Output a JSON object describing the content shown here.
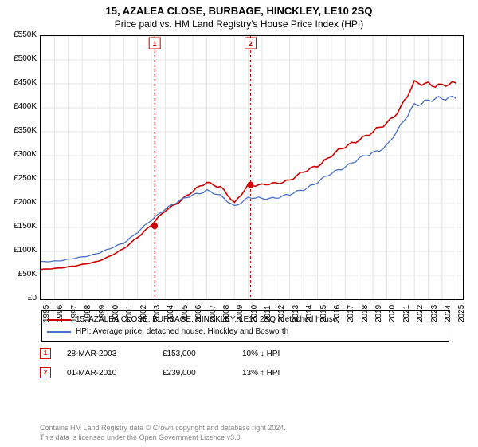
{
  "title": "15, AZALEA CLOSE, BURBAGE, HINCKLEY, LE10 2SQ",
  "subtitle": "Price paid vs. HM Land Registry's House Price Index (HPI)",
  "chart": {
    "type": "line",
    "background_color": "#ffffff",
    "grid_color": "#e5e5e5",
    "axis_color": "#000000",
    "title_fontsize": 13,
    "label_fontsize": 10,
    "xlim": [
      1995,
      2025.5
    ],
    "ylim": [
      0,
      550000
    ],
    "ytick_step": 50000,
    "y_ticks": [
      "£0",
      "£50K",
      "£100K",
      "£150K",
      "£200K",
      "£250K",
      "£300K",
      "£350K",
      "£400K",
      "£450K",
      "£500K",
      "£550K"
    ],
    "x_ticks": [
      1995,
      1996,
      1997,
      1998,
      1999,
      2000,
      2001,
      2002,
      2003,
      2004,
      2005,
      2006,
      2007,
      2008,
      2009,
      2010,
      2011,
      2012,
      2013,
      2014,
      2015,
      2016,
      2017,
      2018,
      2019,
      2020,
      2021,
      2022,
      2023,
      2024,
      2025
    ],
    "sale_markers": [
      {
        "n": "1",
        "x": 2003.24,
        "date": "28-MAR-2003",
        "price": 153000
      },
      {
        "n": "2",
        "x": 2010.16,
        "date": "01-MAR-2010",
        "price": 239000
      }
    ],
    "marker_color": "#cc0000",
    "marker_line_dash": "3,3",
    "series": [
      {
        "name": "property",
        "label": "15, AZALEA CLOSE, BURBAGE, HINCKLEY, LE10 2SQ (detached house)",
        "color": "#cc0000",
        "line_width": 1.6,
        "x": [
          1995,
          1996,
          1997,
          1998,
          1999,
          2000,
          2001,
          2002,
          2003,
          2004,
          2005,
          2006,
          2007,
          2008,
          2009,
          2010,
          2011,
          2012,
          2013,
          2014,
          2015,
          2016,
          2017,
          2018,
          2019,
          2020,
          2021,
          2022,
          2023,
          2024,
          2025
        ],
        "y": [
          62000,
          64000,
          68000,
          72000,
          78000,
          90000,
          105000,
          130000,
          155000,
          185000,
          205000,
          225000,
          245000,
          235000,
          200000,
          240000,
          238000,
          242000,
          250000,
          265000,
          280000,
          300000,
          318000,
          335000,
          348000,
          368000,
          400000,
          450000,
          452000,
          445000,
          450000
        ]
      },
      {
        "name": "hpi",
        "label": "HPI: Average price, detached house, Hinckley and Bosworth",
        "color": "#4a72c4",
        "line_width": 1.3,
        "x": [
          1995,
          1996,
          1997,
          1998,
          1999,
          2000,
          2001,
          2002,
          2003,
          2004,
          2005,
          2006,
          2007,
          2008,
          2009,
          2010,
          2011,
          2012,
          2013,
          2014,
          2015,
          2016,
          2017,
          2018,
          2019,
          2020,
          2021,
          2022,
          2023,
          2024,
          2025
        ],
        "y": [
          78000,
          80000,
          83000,
          88000,
          95000,
          105000,
          118000,
          140000,
          165000,
          190000,
          205000,
          218000,
          228000,
          215000,
          195000,
          212000,
          210000,
          213000,
          218000,
          230000,
          245000,
          262000,
          278000,
          293000,
          305000,
          322000,
          360000,
          408000,
          415000,
          418000,
          425000
        ]
      }
    ]
  },
  "transactions": [
    {
      "n": "1",
      "date": "28-MAR-2003",
      "price": "£153,000",
      "delta": "10% ↓ HPI"
    },
    {
      "n": "2",
      "date": "01-MAR-2010",
      "price": "£239,000",
      "delta": "13% ↑ HPI"
    }
  ],
  "footer": {
    "line1": "Contains HM Land Registry data © Crown copyright and database right 2024.",
    "line2": "This data is licensed under the Open Government Licence v3.0."
  }
}
